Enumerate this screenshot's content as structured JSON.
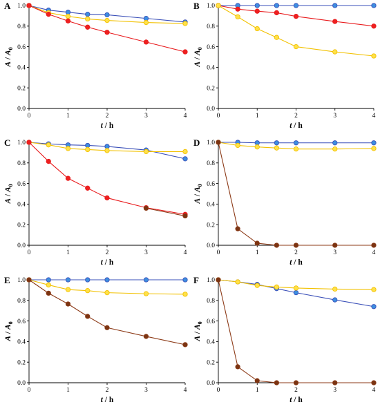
{
  "colors": {
    "blue": "#3a4fb8",
    "blue_fill": "#3d8fe0",
    "yellow": "#f2c100",
    "yellow_fill": "#ffe14a",
    "red": "#e8191b",
    "red_fill": "#ee2020",
    "brown": "#8c3a17",
    "brown_fill": "#7a3412"
  },
  "chart_data": [
    {
      "type": "line",
      "panel": "A",
      "xlabel": "t / h",
      "ylabel": "A / A0",
      "xlim": [
        0,
        4
      ],
      "ylim": [
        0,
        1.0
      ],
      "xticks": [
        "0",
        "1",
        "2",
        "3",
        "4"
      ],
      "yticks": [
        "0.0",
        "0.2",
        "0.4",
        "0.6",
        "0.8",
        "1.0"
      ],
      "x": [
        0,
        0.5,
        1,
        1.5,
        2,
        3,
        4
      ],
      "series": [
        {
          "color": "blue",
          "values": [
            1.0,
            0.955,
            0.935,
            0.915,
            0.91,
            0.875,
            0.84
          ]
        },
        {
          "color": "yellow",
          "values": [
            1.0,
            0.93,
            0.895,
            0.87,
            0.855,
            0.835,
            0.825
          ]
        },
        {
          "color": "red",
          "values": [
            1.0,
            0.915,
            0.85,
            0.79,
            0.74,
            0.645,
            0.55
          ]
        }
      ]
    },
    {
      "type": "line",
      "panel": "B",
      "xlabel": "t / h",
      "ylabel": "A / A0",
      "xlim": [
        0,
        4
      ],
      "ylim": [
        0,
        1.0
      ],
      "xticks": [
        "0",
        "1",
        "2",
        "3",
        "4"
      ],
      "yticks": [
        "0.0",
        "0.2",
        "0.4",
        "0.6",
        "0.8",
        "1.0"
      ],
      "x": [
        0,
        0.5,
        1,
        1.5,
        2,
        3,
        4
      ],
      "series": [
        {
          "color": "blue",
          "values": [
            1.0,
            1.0,
            1.0,
            1.0,
            1.0,
            1.0,
            1.0
          ]
        },
        {
          "color": "red",
          "values": [
            1.0,
            0.965,
            0.945,
            0.93,
            0.895,
            0.845,
            0.8
          ]
        },
        {
          "color": "yellow",
          "values": [
            1.0,
            0.89,
            0.775,
            0.69,
            0.6,
            0.55,
            0.51
          ]
        }
      ]
    },
    {
      "type": "line",
      "panel": "C",
      "xlabel": "t / h",
      "ylabel": "A / A0",
      "xlim": [
        0,
        4
      ],
      "ylim": [
        0,
        1.0
      ],
      "xticks": [
        "0",
        "1",
        "2",
        "3",
        "4"
      ],
      "yticks": [
        "0.0",
        "0.2",
        "0.4",
        "0.6",
        "0.8",
        "1.0"
      ],
      "x": [
        0,
        0.5,
        1,
        1.5,
        2,
        3,
        4
      ],
      "series": [
        {
          "color": "blue",
          "values": [
            1.0,
            0.985,
            0.975,
            0.97,
            0.96,
            0.925,
            0.84
          ]
        },
        {
          "color": "yellow",
          "values": [
            1.0,
            0.975,
            0.94,
            0.93,
            0.92,
            0.91,
            0.91
          ]
        },
        {
          "color": "red",
          "values": [
            1.0,
            0.815,
            0.65,
            0.555,
            0.46,
            0.365,
            0.3
          ]
        },
        {
          "color": "brown",
          "values": [
            null,
            null,
            null,
            null,
            null,
            0.36,
            0.285
          ]
        }
      ]
    },
    {
      "type": "line",
      "panel": "D",
      "xlabel": "t / h",
      "ylabel": "A / A0",
      "xlim": [
        0,
        4
      ],
      "ylim": [
        0,
        1.0
      ],
      "xticks": [
        "0",
        "1",
        "2",
        "3",
        "4"
      ],
      "yticks": [
        "0.0",
        "0.2",
        "0.4",
        "0.6",
        "0.8",
        "1.0"
      ],
      "x": [
        0,
        0.5,
        1,
        1.5,
        2,
        3,
        4
      ],
      "series": [
        {
          "color": "blue",
          "values": [
            1.0,
            1.0,
            0.995,
            0.995,
            0.995,
            0.995,
            0.995
          ]
        },
        {
          "color": "yellow",
          "values": [
            1.0,
            0.97,
            0.955,
            0.945,
            0.935,
            0.935,
            0.94
          ]
        },
        {
          "color": "brown",
          "values": [
            1.0,
            0.16,
            0.02,
            0.0,
            0.0,
            0.0,
            0.0
          ]
        }
      ]
    },
    {
      "type": "line",
      "panel": "E",
      "xlabel": "t / h",
      "ylabel": "A / A0",
      "xlim": [
        0,
        4
      ],
      "ylim": [
        0,
        1.0
      ],
      "xticks": [
        "0",
        "1",
        "2",
        "3",
        "4"
      ],
      "yticks": [
        "0.0",
        "0.2",
        "0.4",
        "0.6",
        "0.8",
        "1.0"
      ],
      "x": [
        0,
        0.5,
        1,
        1.5,
        2,
        3,
        4
      ],
      "series": [
        {
          "color": "blue",
          "values": [
            1.0,
            1.0,
            1.0,
            1.0,
            1.0,
            1.0,
            1.0
          ]
        },
        {
          "color": "yellow",
          "values": [
            1.0,
            0.95,
            0.905,
            0.895,
            0.875,
            0.865,
            0.86
          ]
        },
        {
          "color": "brown",
          "values": [
            1.0,
            0.87,
            0.765,
            0.645,
            0.535,
            0.45,
            0.37
          ]
        }
      ]
    },
    {
      "type": "line",
      "panel": "F",
      "xlabel": "t / h",
      "ylabel": "A / A0",
      "xlim": [
        0,
        4
      ],
      "ylim": [
        0,
        1.0
      ],
      "xticks": [
        "0",
        "1",
        "2",
        "3",
        "4"
      ],
      "yticks": [
        "0.0",
        "0.2",
        "0.4",
        "0.6",
        "0.8",
        "1.0"
      ],
      "x": [
        0,
        0.5,
        1,
        1.5,
        2,
        3,
        4
      ],
      "series": [
        {
          "color": "blue",
          "values": [
            1.0,
            0.98,
            0.955,
            0.915,
            0.875,
            0.805,
            0.74
          ]
        },
        {
          "color": "yellow",
          "values": [
            1.0,
            0.98,
            0.945,
            0.93,
            0.92,
            0.91,
            0.905
          ]
        },
        {
          "color": "brown",
          "values": [
            1.0,
            0.155,
            0.02,
            0.0,
            0.0,
            0.0,
            0.0
          ]
        }
      ]
    }
  ]
}
